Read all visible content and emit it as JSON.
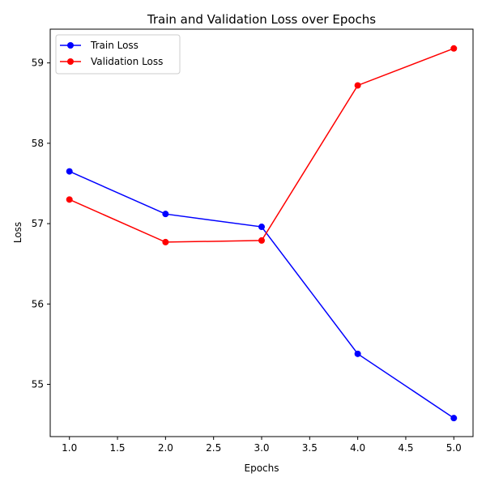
{
  "chart_data": {
    "type": "line",
    "title": "Train and Validation Loss over Epochs",
    "xlabel": "Epochs",
    "ylabel": "Loss",
    "xlim": [
      0.8,
      5.2
    ],
    "ylim": [
      54.35,
      59.42
    ],
    "x_ticks": [
      1.0,
      1.5,
      2.0,
      2.5,
      3.0,
      3.5,
      4.0,
      4.5,
      5.0
    ],
    "x_tick_labels": [
      "1.0",
      "1.5",
      "2.0",
      "2.5",
      "3.0",
      "3.5",
      "4.0",
      "4.5",
      "5.0"
    ],
    "y_ticks": [
      55,
      56,
      57,
      58,
      59
    ],
    "y_tick_labels": [
      "55",
      "56",
      "57",
      "58",
      "59"
    ],
    "grid": false,
    "legend_position": "top-left",
    "x": [
      1,
      2,
      3,
      4,
      5
    ],
    "series": [
      {
        "name": "Train Loss",
        "color": "#0000ff",
        "values": [
          57.65,
          57.12,
          56.96,
          55.38,
          54.58
        ]
      },
      {
        "name": "Validation Loss",
        "color": "#ff0000",
        "values": [
          57.3,
          56.77,
          56.79,
          58.72,
          59.18
        ]
      }
    ]
  }
}
